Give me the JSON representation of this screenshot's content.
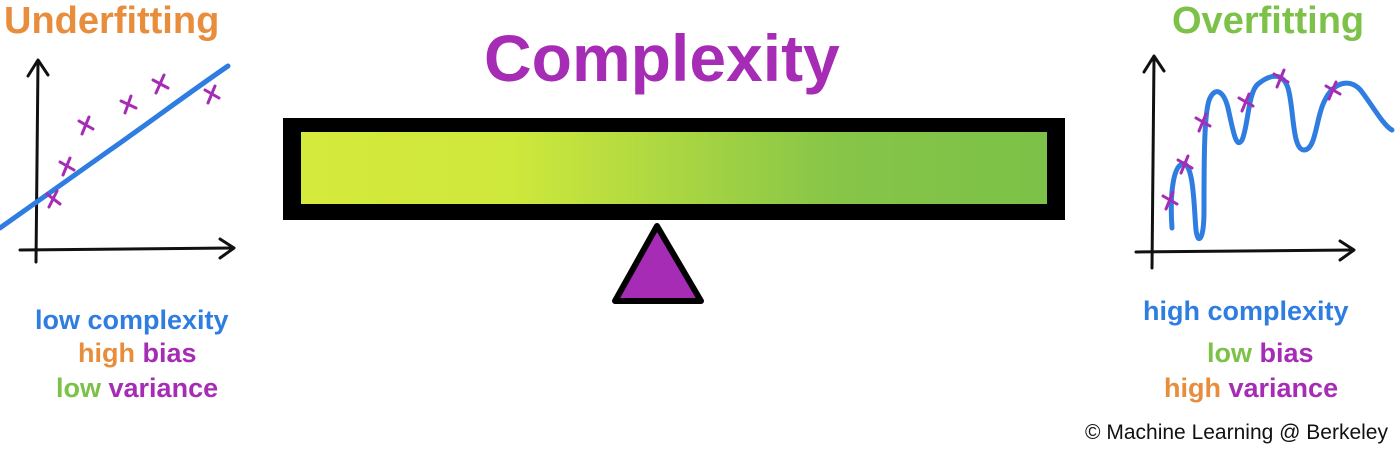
{
  "colors": {
    "orange": "#e88d3c",
    "green": "#7cc148",
    "purple": "#a62cb5",
    "blue": "#2f7de1",
    "bar_left": "#d4ea3c",
    "bar_right": "#7cc148",
    "frame": "#000000",
    "fulcrum": "#a62cb5"
  },
  "center": {
    "title": "Complexity"
  },
  "left": {
    "title": "Underfitting",
    "line1": "low complexity",
    "line2_a": "high",
    "line2_b": "bias",
    "line3_a": "low",
    "line3_b": "variance"
  },
  "right": {
    "title": "Overfitting",
    "line1": "high complexity",
    "line2_a": "low",
    "line2_b": "bias",
    "line3_a": "high",
    "line3_b": "variance"
  },
  "footer": {
    "copyright": "© Machine Learning @ Berkeley"
  }
}
